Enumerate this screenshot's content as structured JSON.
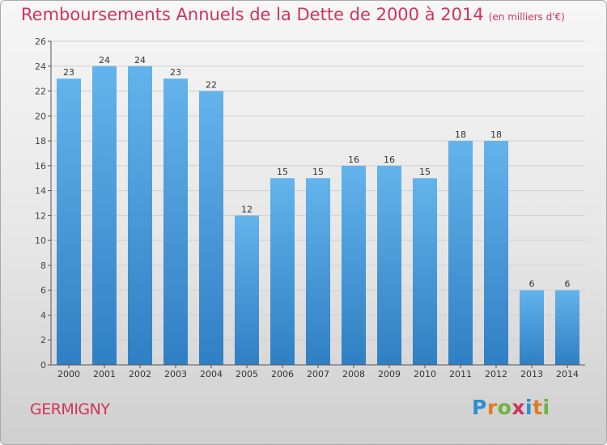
{
  "header": {
    "title": "Remboursements Annuels de la Dette de 2000 à 2014",
    "unit": "(en milliers d'€)"
  },
  "footer": {
    "commune": "GERMIGNY",
    "logo_letters": [
      {
        "char": "P",
        "color": "#2c8fd0"
      },
      {
        "char": "r",
        "color": "#e07b21"
      },
      {
        "char": "o",
        "color": "#6db33f"
      },
      {
        "char": "x",
        "color": "#d0335c"
      },
      {
        "char": "i",
        "color": "#2c8fd0"
      },
      {
        "char": "t",
        "color": "#e07b21"
      },
      {
        "char": "i",
        "color": "#6db33f"
      }
    ]
  },
  "colors": {
    "title": "#d0335c",
    "bar_top": "#63b3ec",
    "bar_bottom": "#2f7fc4",
    "grid": "#cfcfcf",
    "axis": "#555555"
  },
  "chart_data": {
    "type": "bar",
    "categories": [
      "2000",
      "2001",
      "2002",
      "2003",
      "2004",
      "2005",
      "2006",
      "2007",
      "2008",
      "2009",
      "2010",
      "2011",
      "2012",
      "2013",
      "2014"
    ],
    "values": [
      23,
      24,
      24,
      23,
      22,
      12,
      15,
      15,
      16,
      16,
      15,
      18,
      18,
      6,
      6
    ],
    "ylim": [
      0,
      26
    ],
    "yticks": [
      0,
      2,
      4,
      6,
      8,
      10,
      12,
      14,
      16,
      18,
      20,
      22,
      24,
      26
    ],
    "grid": true,
    "legend": "none"
  }
}
